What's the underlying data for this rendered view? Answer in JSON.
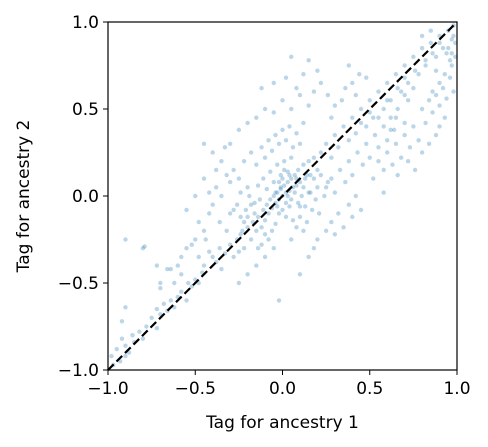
{
  "chart_data": {
    "type": "scatter",
    "title": "",
    "xlabel": "Tag for ancestry 1",
    "ylabel": "Tag for ancestry 2",
    "xlim": [
      -1.0,
      1.0
    ],
    "ylim": [
      -1.0,
      1.0
    ],
    "xticks": [
      -1.0,
      -0.5,
      0.0,
      0.5,
      1.0
    ],
    "yticks": [
      -1.0,
      -0.5,
      0.0,
      0.5,
      1.0
    ],
    "xtick_labels": [
      "−1.0",
      "−0.5",
      "0.0",
      "0.5",
      "1.0"
    ],
    "ytick_labels": [
      "−1.0",
      "−0.5",
      "0.0",
      "0.5",
      "1.0"
    ],
    "grid": false,
    "legend": "none",
    "point_color": "#1f77b4",
    "point_opacity": 0.3,
    "reference_line": {
      "x": [
        -1.0,
        1.0
      ],
      "y": [
        -1.0,
        1.0
      ],
      "style": "dashed",
      "color": "#000000"
    },
    "points": [
      [
        -0.98,
        -0.92
      ],
      [
        -0.97,
        -0.97
      ],
      [
        -0.95,
        -0.88
      ],
      [
        -0.93,
        -0.95
      ],
      [
        -0.92,
        -0.82
      ],
      [
        -0.9,
        -0.86
      ],
      [
        -0.9,
        -0.92
      ],
      [
        -0.88,
        -0.9
      ],
      [
        -0.86,
        -0.8
      ],
      [
        -0.85,
        -0.84
      ],
      [
        -0.82,
        -0.78
      ],
      [
        -0.8,
        -0.82
      ],
      [
        -0.78,
        -0.75
      ],
      [
        -0.75,
        -0.7
      ],
      [
        -0.72,
        -0.76
      ],
      [
        -0.72,
        -0.65
      ],
      [
        -0.7,
        -0.68
      ],
      [
        -0.68,
        -0.62
      ],
      [
        -0.66,
        -0.66
      ],
      [
        -0.64,
        -0.6
      ],
      [
        -0.62,
        -0.64
      ],
      [
        -0.6,
        -0.58
      ],
      [
        -0.58,
        -0.55
      ],
      [
        -0.55,
        -0.6
      ],
      [
        -0.54,
        -0.5
      ],
      [
        -0.52,
        -0.52
      ],
      [
        -0.5,
        -0.48
      ],
      [
        -0.48,
        -0.5
      ],
      [
        -0.46,
        -0.44
      ],
      [
        -0.45,
        -0.4
      ],
      [
        -0.92,
        -0.72
      ],
      [
        -0.9,
        -0.64
      ],
      [
        -0.7,
        -0.5
      ],
      [
        -0.8,
        -0.3
      ],
      [
        -0.79,
        -0.29
      ],
      [
        -0.66,
        -0.42
      ],
      [
        -0.6,
        -0.4
      ],
      [
        -0.64,
        -0.42
      ],
      [
        -0.7,
        -0.53
      ],
      [
        -0.58,
        -0.35
      ],
      [
        -0.55,
        -0.3
      ],
      [
        -0.52,
        -0.28
      ],
      [
        -0.5,
        -0.25
      ],
      [
        -0.45,
        -0.2
      ],
      [
        -0.42,
        -0.32
      ],
      [
        -0.4,
        -0.35
      ],
      [
        -0.38,
        -0.38
      ],
      [
        -0.36,
        -0.3
      ],
      [
        -0.35,
        -0.42
      ],
      [
        -0.33,
        -0.33
      ],
      [
        -0.3,
        -0.28
      ],
      [
        -0.28,
        -0.35
      ],
      [
        -0.26,
        -0.25
      ],
      [
        -0.25,
        -0.32
      ],
      [
        -0.23,
        -0.2
      ],
      [
        -0.22,
        -0.3
      ],
      [
        -0.2,
        -0.18
      ],
      [
        -0.18,
        -0.25
      ],
      [
        -0.17,
        -0.15
      ],
      [
        -0.15,
        -0.2
      ],
      [
        -0.14,
        -0.12
      ],
      [
        -0.12,
        -0.18
      ],
      [
        -0.11,
        -0.08
      ],
      [
        -0.1,
        -0.14
      ],
      [
        -0.09,
        -0.05
      ],
      [
        -0.08,
        -0.1
      ],
      [
        -0.07,
        -0.02
      ],
      [
        -0.06,
        -0.07
      ],
      [
        -0.05,
        0.0
      ],
      [
        -0.04,
        -0.04
      ],
      [
        -0.03,
        0.02
      ],
      [
        -0.02,
        -0.02
      ],
      [
        -0.01,
        0.04
      ],
      [
        0.0,
        0.0
      ],
      [
        0.01,
        0.06
      ],
      [
        0.02,
        0.02
      ],
      [
        0.03,
        0.08
      ],
      [
        0.04,
        0.03
      ],
      [
        0.05,
        0.1
      ],
      [
        0.06,
        0.05
      ],
      [
        0.07,
        0.12
      ],
      [
        0.08,
        0.06
      ],
      [
        0.09,
        0.15
      ],
      [
        0.1,
        0.08
      ],
      [
        0.12,
        0.18
      ],
      [
        0.13,
        0.1
      ],
      [
        0.15,
        0.2
      ],
      [
        0.16,
        0.12
      ],
      [
        0.18,
        0.22
      ],
      [
        0.2,
        0.15
      ],
      [
        -0.2,
        0.05
      ],
      [
        -0.25,
        0.1
      ],
      [
        -0.3,
        0.08
      ],
      [
        -0.28,
        0.15
      ],
      [
        -0.22,
        0.2
      ],
      [
        -0.18,
        0.25
      ],
      [
        -0.15,
        0.18
      ],
      [
        -0.12,
        0.28
      ],
      [
        -0.1,
        0.22
      ],
      [
        -0.08,
        0.32
      ],
      [
        -0.06,
        0.26
      ],
      [
        -0.04,
        0.35
      ],
      [
        -0.02,
        0.3
      ],
      [
        0.0,
        0.38
      ],
      [
        0.02,
        0.32
      ],
      [
        0.04,
        0.4
      ],
      [
        0.06,
        0.28
      ],
      [
        0.08,
        0.36
      ],
      [
        0.1,
        0.3
      ],
      [
        0.12,
        0.42
      ],
      [
        -0.35,
        0.0
      ],
      [
        -0.38,
        0.05
      ],
      [
        -0.4,
        -0.05
      ],
      [
        -0.42,
        0.02
      ],
      [
        -0.32,
        0.12
      ],
      [
        -0.3,
        -0.1
      ],
      [
        -0.26,
        -0.05
      ],
      [
        -0.24,
        0.02
      ],
      [
        -0.21,
        -0.08
      ],
      [
        -0.19,
        0.0
      ],
      [
        -0.16,
        -0.04
      ],
      [
        -0.14,
        0.06
      ],
      [
        -0.13,
        -0.02
      ],
      [
        -0.11,
        0.1
      ],
      [
        -0.09,
        0.04
      ],
      [
        -0.07,
        0.14
      ],
      [
        -0.05,
        0.08
      ],
      [
        -0.03,
        0.18
      ],
      [
        -0.01,
        0.12
      ],
      [
        0.01,
        0.2
      ],
      [
        0.03,
        0.14
      ],
      [
        0.05,
        0.22
      ],
      [
        0.07,
        0.02
      ],
      [
        0.09,
        -0.04
      ],
      [
        0.11,
        0.0
      ],
      [
        0.13,
        -0.06
      ],
      [
        0.15,
        0.02
      ],
      [
        0.17,
        -0.08
      ],
      [
        0.19,
        -0.02
      ],
      [
        0.21,
        -0.1
      ],
      [
        0.0,
        -0.08
      ],
      [
        0.02,
        -0.12
      ],
      [
        0.04,
        -0.06
      ],
      [
        0.06,
        -0.14
      ],
      [
        -0.02,
        -0.1
      ],
      [
        -0.04,
        -0.16
      ],
      [
        0.08,
        -0.18
      ],
      [
        0.1,
        -0.12
      ],
      [
        0.12,
        -0.2
      ],
      [
        0.14,
        -0.15
      ],
      [
        0.2,
        -0.25
      ],
      [
        0.25,
        -0.2
      ],
      [
        0.28,
        -0.15
      ],
      [
        0.3,
        -0.22
      ],
      [
        0.32,
        -0.1
      ],
      [
        0.35,
        -0.18
      ],
      [
        0.38,
        -0.05
      ],
      [
        0.4,
        -0.12
      ],
      [
        0.42,
        0.0
      ],
      [
        0.45,
        -0.08
      ],
      [
        0.22,
        0.25
      ],
      [
        0.25,
        0.3
      ],
      [
        0.28,
        0.22
      ],
      [
        0.3,
        0.35
      ],
      [
        0.32,
        0.28
      ],
      [
        0.35,
        0.4
      ],
      [
        0.38,
        0.32
      ],
      [
        0.4,
        0.45
      ],
      [
        0.42,
        0.36
      ],
      [
        0.45,
        0.5
      ],
      [
        0.48,
        0.4
      ],
      [
        0.5,
        0.55
      ],
      [
        0.52,
        0.45
      ],
      [
        0.55,
        0.6
      ],
      [
        0.58,
        0.5
      ],
      [
        0.6,
        0.65
      ],
      [
        0.62,
        0.55
      ],
      [
        0.65,
        0.7
      ],
      [
        0.68,
        0.6
      ],
      [
        0.7,
        0.75
      ],
      [
        0.72,
        0.65
      ],
      [
        0.75,
        0.8
      ],
      [
        0.78,
        0.7
      ],
      [
        0.8,
        0.85
      ],
      [
        0.82,
        0.75
      ],
      [
        0.85,
        0.88
      ],
      [
        0.88,
        0.8
      ],
      [
        0.9,
        0.92
      ],
      [
        0.92,
        0.85
      ],
      [
        0.95,
        0.95
      ],
      [
        0.97,
        0.9
      ],
      [
        0.98,
        0.98
      ],
      [
        0.96,
        0.78
      ],
      [
        0.94,
        0.82
      ],
      [
        0.99,
        0.88
      ],
      [
        0.97,
        0.75
      ],
      [
        0.93,
        0.7
      ],
      [
        0.9,
        0.65
      ],
      [
        0.88,
        0.72
      ],
      [
        0.86,
        0.6
      ],
      [
        0.25,
        0.05
      ],
      [
        0.28,
        0.1
      ],
      [
        0.3,
        0.02
      ],
      [
        0.33,
        0.15
      ],
      [
        0.36,
        0.08
      ],
      [
        0.38,
        0.2
      ],
      [
        0.4,
        0.12
      ],
      [
        0.43,
        0.25
      ],
      [
        0.46,
        0.18
      ],
      [
        0.48,
        0.3
      ],
      [
        0.5,
        0.22
      ],
      [
        0.53,
        0.35
      ],
      [
        0.55,
        0.28
      ],
      [
        0.58,
        0.4
      ],
      [
        0.6,
        0.32
      ],
      [
        0.62,
        0.45
      ],
      [
        0.64,
        0.38
      ],
      [
        0.66,
        0.5
      ],
      [
        0.7,
        0.42
      ],
      [
        0.72,
        0.55
      ],
      [
        0.55,
        0.2
      ],
      [
        0.58,
        0.15
      ],
      [
        0.6,
        0.25
      ],
      [
        0.63,
        0.18
      ],
      [
        0.65,
        0.3
      ],
      [
        0.68,
        0.22
      ],
      [
        0.7,
        0.35
      ],
      [
        0.73,
        0.28
      ],
      [
        0.75,
        0.4
      ],
      [
        0.78,
        0.32
      ],
      [
        0.8,
        0.5
      ],
      [
        0.82,
        0.42
      ],
      [
        0.84,
        0.55
      ],
      [
        0.86,
        0.48
      ],
      [
        0.88,
        0.58
      ],
      [
        0.9,
        0.52
      ],
      [
        0.92,
        0.62
      ],
      [
        0.94,
        0.56
      ],
      [
        0.96,
        0.68
      ],
      [
        0.98,
        0.6
      ],
      [
        0.52,
        0.1
      ],
      [
        0.58,
        0.02
      ],
      [
        0.66,
        0.12
      ],
      [
        0.72,
        0.2
      ],
      [
        0.76,
        0.15
      ],
      [
        0.8,
        0.25
      ],
      [
        0.84,
        0.3
      ],
      [
        0.88,
        0.35
      ],
      [
        0.9,
        0.4
      ],
      [
        0.93,
        0.45
      ],
      [
        -0.3,
        0.3
      ],
      [
        -0.25,
        0.38
      ],
      [
        -0.2,
        0.42
      ],
      [
        -0.15,
        0.45
      ],
      [
        -0.1,
        0.5
      ],
      [
        -0.05,
        0.48
      ],
      [
        0.0,
        0.55
      ],
      [
        0.05,
        0.5
      ],
      [
        0.1,
        0.58
      ],
      [
        0.15,
        0.52
      ],
      [
        -0.12,
        0.62
      ],
      [
        -0.05,
        0.65
      ],
      [
        0.02,
        0.68
      ],
      [
        0.08,
        0.62
      ],
      [
        0.12,
        0.7
      ],
      [
        0.18,
        0.6
      ],
      [
        0.22,
        0.65
      ],
      [
        0.15,
        0.78
      ],
      [
        0.05,
        0.8
      ],
      [
        0.2,
        0.72
      ],
      [
        0.28,
        0.45
      ],
      [
        0.3,
        0.52
      ],
      [
        0.34,
        0.55
      ],
      [
        0.26,
        0.58
      ],
      [
        0.36,
        0.62
      ],
      [
        0.4,
        0.65
      ],
      [
        0.42,
        0.58
      ],
      [
        0.44,
        0.7
      ],
      [
        0.38,
        0.75
      ],
      [
        0.48,
        0.68
      ],
      [
        -0.5,
        0.0
      ],
      [
        -0.45,
        0.1
      ],
      [
        -0.48,
        -0.15
      ],
      [
        -0.42,
        -0.1
      ],
      [
        -0.55,
        -0.08
      ],
      [
        -0.38,
        0.15
      ],
      [
        -0.35,
        0.2
      ],
      [
        -0.4,
        0.25
      ],
      [
        -0.45,
        0.3
      ],
      [
        -0.33,
        0.28
      ],
      [
        -0.02,
        -0.6
      ],
      [
        0.1,
        -0.45
      ],
      [
        0.15,
        -0.35
      ],
      [
        -0.05,
        -0.3
      ],
      [
        -0.15,
        -0.4
      ],
      [
        -0.2,
        -0.45
      ],
      [
        -0.25,
        -0.5
      ],
      [
        -0.1,
        -0.35
      ],
      [
        0.05,
        -0.25
      ],
      [
        0.18,
        -0.3
      ],
      [
        -0.9,
        -0.25
      ],
      [
        -0.72,
        -0.4
      ],
      [
        -0.62,
        -0.5
      ],
      [
        -0.58,
        -0.45
      ],
      [
        -0.48,
        -0.35
      ],
      [
        -0.44,
        -0.25
      ],
      [
        -0.36,
        -0.15
      ],
      [
        -0.32,
        -0.2
      ],
      [
        -0.28,
        -0.08
      ],
      [
        -0.24,
        -0.12
      ],
      [
        0.12,
        0.05
      ],
      [
        0.14,
        0.12
      ],
      [
        0.16,
        0.02
      ],
      [
        0.18,
        0.1
      ],
      [
        0.2,
        0.05
      ],
      [
        0.22,
        0.12
      ],
      [
        0.24,
        0.0
      ],
      [
        0.26,
        0.08
      ],
      [
        0.1,
        -0.06
      ],
      [
        0.08,
        0.1
      ],
      [
        -0.06,
        -0.2
      ],
      [
        -0.08,
        -0.25
      ],
      [
        -0.1,
        -0.22
      ],
      [
        -0.12,
        -0.28
      ],
      [
        -0.14,
        -0.3
      ],
      [
        -0.16,
        -0.1
      ],
      [
        -0.18,
        -0.05
      ],
      [
        -0.2,
        -0.12
      ],
      [
        -0.22,
        -0.15
      ],
      [
        -0.24,
        -0.22
      ],
      [
        0.0,
        0.1
      ],
      [
        0.01,
        0.15
      ],
      [
        -0.01,
        0.05
      ],
      [
        0.02,
        -0.04
      ],
      [
        -0.02,
        0.08
      ],
      [
        0.03,
        0.0
      ],
      [
        -0.03,
        -0.06
      ],
      [
        0.04,
        0.12
      ],
      [
        -0.04,
        0.02
      ],
      [
        0.05,
        -0.02
      ],
      [
        0.98,
        0.92
      ],
      [
        0.99,
        0.8
      ],
      [
        0.95,
        0.85
      ],
      [
        0.97,
        0.82
      ],
      [
        0.85,
        0.95
      ],
      [
        0.8,
        0.92
      ],
      [
        0.75,
        0.62
      ],
      [
        0.7,
        0.58
      ],
      [
        0.65,
        0.45
      ],
      [
        0.62,
        0.38
      ],
      [
        0.45,
        0.42
      ],
      [
        0.5,
        0.48
      ],
      [
        0.55,
        0.45
      ],
      [
        0.6,
        0.55
      ],
      [
        0.66,
        0.62
      ],
      [
        0.7,
        0.68
      ],
      [
        0.76,
        0.72
      ],
      [
        0.82,
        0.78
      ],
      [
        0.86,
        0.82
      ],
      [
        0.9,
        0.88
      ]
    ]
  }
}
